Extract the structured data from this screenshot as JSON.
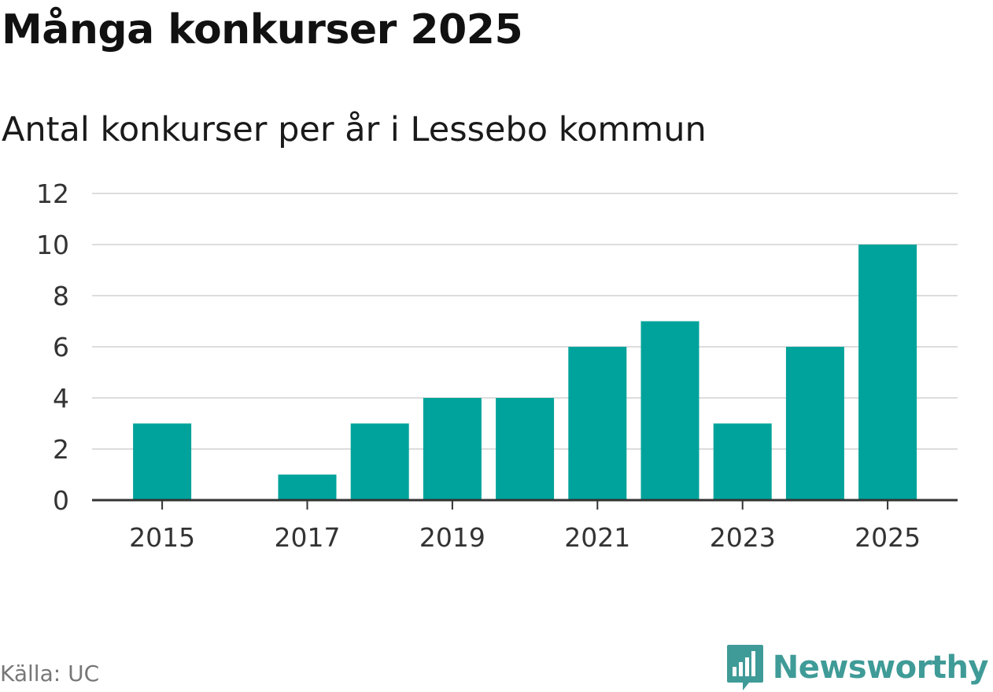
{
  "title": "Många konkurser 2025",
  "subtitle": "Antal konkurser per år i Lessebo kommun",
  "source": "Källa: UC",
  "brand": {
    "name": "Newsworthy",
    "icon": "newsworthy-logo-icon",
    "color": "#3f9b97"
  },
  "colors": {
    "bar": "#00a39b",
    "grid": "#dddddd",
    "axis": "#333333"
  },
  "chart_data": {
    "type": "bar",
    "title": "Många konkurser 2025",
    "subtitle": "Antal konkurser per år i Lessebo kommun",
    "xlabel": "",
    "ylabel": "",
    "categories": [
      "2015",
      "2016",
      "2017",
      "2018",
      "2019",
      "2020",
      "2021",
      "2022",
      "2023",
      "2024",
      "2025"
    ],
    "x_tick_labels": [
      "2015",
      "2017",
      "2019",
      "2021",
      "2023",
      "2025"
    ],
    "values": [
      3,
      0,
      1,
      3,
      4,
      4,
      6,
      7,
      3,
      6,
      10
    ],
    "ylim": [
      0,
      12
    ],
    "y_ticks": [
      0,
      2,
      4,
      6,
      8,
      10,
      12
    ],
    "grid": true,
    "legend": "none"
  }
}
